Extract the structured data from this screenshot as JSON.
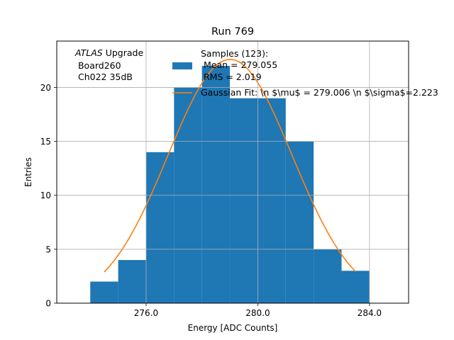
{
  "chart_data": {
    "type": "bar",
    "title": "Run 769",
    "xlabel": "Energy [ADC Counts]",
    "ylabel": "Entries",
    "xlim": [
      272.8,
      285.4
    ],
    "ylim": [
      0,
      24.3
    ],
    "grid": true,
    "x_ticks": [
      276.0,
      280.0,
      284.0
    ],
    "x_tick_labels": [
      "276.0",
      "280.0",
      "284.0"
    ],
    "y_ticks": [
      0,
      5,
      10,
      15,
      20
    ],
    "y_tick_labels": [
      "0",
      "5",
      "10",
      "15",
      "20"
    ],
    "bin_edges": [
      274,
      275,
      276,
      277,
      278,
      279,
      280,
      281,
      282,
      283,
      284
    ],
    "values": [
      2,
      4,
      14,
      20,
      22,
      19,
      19,
      15,
      5,
      3
    ],
    "histogram_color": "#1f77b4",
    "fit": {
      "amplitude": 22.6,
      "mean": 279.006,
      "sigma": 2.223,
      "x_range": [
        274.5,
        283.5
      ],
      "color": "#ff7f0e"
    },
    "atlas_label": {
      "italic": "ATLAS",
      "rest": " Upgrade",
      "line2": " Board260",
      "line3": " Ch022 35dB"
    },
    "legend": {
      "position": "top-center",
      "hist_lines": [
        "Samples (123):",
        " Mean = 279.055",
        " RMS = 2.019"
      ],
      "fit_label": "Gaussian Fit: \\n $\\mu$ = 279.006 \\n $\\sigma$=2.223"
    }
  }
}
